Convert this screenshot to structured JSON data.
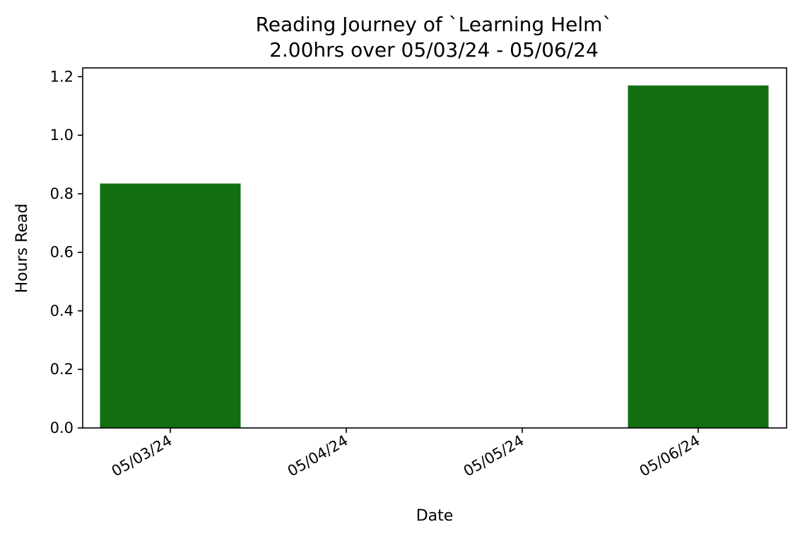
{
  "chart_data": {
    "type": "bar",
    "title": "Reading Journey of `Learning Helm`",
    "subtitle": "2.00hrs over 05/03/24 - 05/06/24",
    "xlabel": "Date",
    "ylabel": "Hours Read",
    "categories": [
      "05/03/24",
      "05/04/24",
      "05/05/24",
      "05/06/24"
    ],
    "values": [
      0.835,
      0,
      0,
      1.17
    ],
    "ylim": [
      0,
      1.23
    ],
    "yticks": [
      0.0,
      0.2,
      0.4,
      0.6,
      0.8,
      1.0,
      1.2
    ],
    "ytick_labels": [
      "0.0",
      "0.2",
      "0.4",
      "0.6",
      "0.8",
      "1.0",
      "1.2"
    ],
    "bar_color": "#116f11",
    "grid": false
  }
}
